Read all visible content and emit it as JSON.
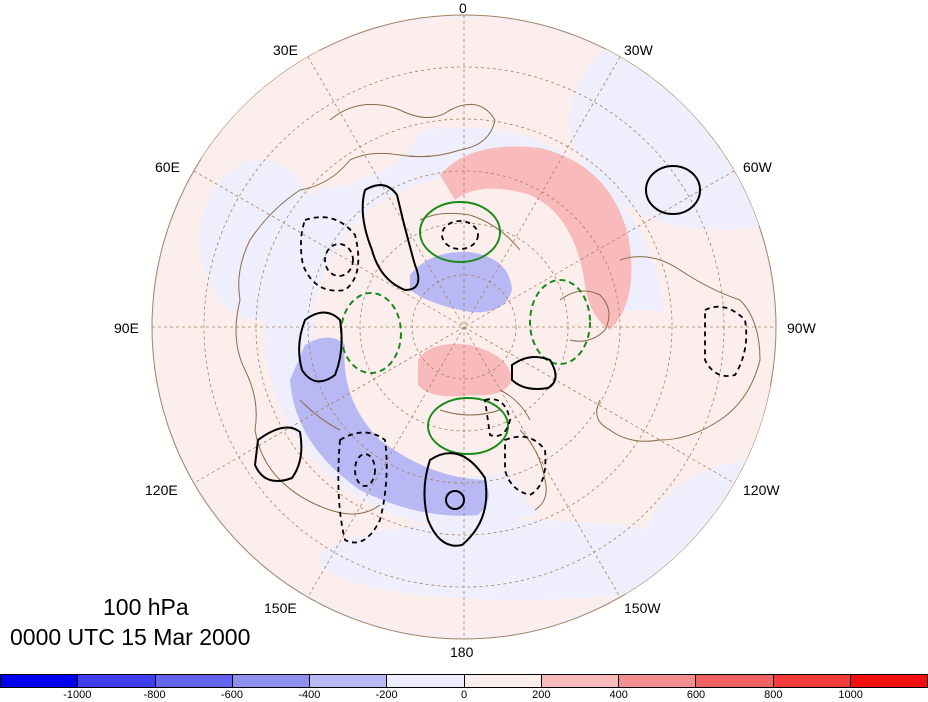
{
  "map": {
    "level_label": "100 hPa",
    "time_label": "0000 UTC 15 Mar 2000",
    "lon_labels": [
      "0",
      "30W",
      "60W",
      "90W",
      "120W",
      "150W",
      "180",
      "150E",
      "120E",
      "90E",
      "60E",
      "30E"
    ]
  },
  "colorbar": {
    "colors": [
      "#0000ee",
      "#3e3eee",
      "#6464ee",
      "#8f8fee",
      "#b8b8f4",
      "#ececfc",
      "#fdeeee",
      "#f8baba",
      "#f48e8e",
      "#f26464",
      "#f23c3c",
      "#f20f0f"
    ],
    "labels": [
      "-1000",
      "-800",
      "-600",
      "-400",
      "-200",
      "0",
      "200",
      "400",
      "600",
      "800",
      "1000"
    ]
  },
  "contours": {
    "positive_color": "#000000",
    "negative_color": "#000000",
    "zero_color": "#1a8a1a",
    "coast_color": "#8b6b47",
    "grid_color": "#a9825b"
  }
}
